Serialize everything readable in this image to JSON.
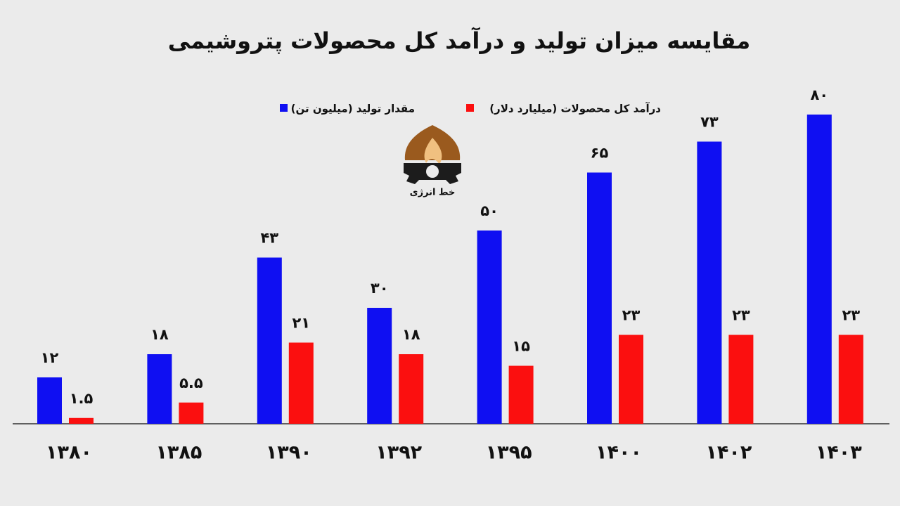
{
  "chart_data": {
    "type": "bar",
    "title": "مقایسه میزان تولید و درآمد کل محصولات پتروشیمی",
    "logo_text": "خط انرژی",
    "categories": [
      "۱۳۸۰",
      "۱۳۸۵",
      "۱۳۹۰",
      "۱۳۹۲",
      "۱۳۹۵",
      "۱۴۰۰",
      "۱۴۰۲",
      "۱۴۰۳"
    ],
    "series": [
      {
        "name": "مقدار تولید (میلیون تن)",
        "color": "#0f0ff2",
        "values": [
          12,
          18,
          43,
          30,
          50,
          65,
          73,
          80
        ],
        "value_labels": [
          "۱۲",
          "۱۸",
          "۴۳",
          "۳۰",
          "۵۰",
          "۶۵",
          "۷۳",
          "۸۰"
        ]
      },
      {
        "name": "درآمد کل محصولات (میلیارد دلار)",
        "color": "#fb0f0f",
        "values": [
          1.5,
          5.5,
          21,
          18,
          15,
          23,
          23,
          23
        ],
        "value_labels": [
          "۱.۵",
          "۵.۵",
          "۲۱",
          "۱۸",
          "۱۵",
          "۲۳",
          "۲۳",
          "۲۳"
        ]
      }
    ]
  }
}
